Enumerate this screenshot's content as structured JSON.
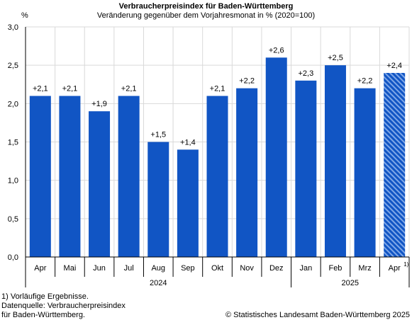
{
  "chart_data": {
    "type": "bar",
    "title": "Verbraucherpreisindex für Baden-Württemberg",
    "subtitle": "Veränderung gegenüber dem Vorjahresmonat in % (2020=100)",
    "ylabel": "%",
    "ylim": [
      0,
      3
    ],
    "yticks": [
      "0,0",
      "0,5",
      "1,0",
      "1,5",
      "2,0",
      "2,5",
      "3,0"
    ],
    "ytick_values": [
      0,
      0.5,
      1.0,
      1.5,
      2.0,
      2.5,
      3.0
    ],
    "categories": [
      "Apr",
      "Mai",
      "Jun",
      "Jul",
      "Aug",
      "Sep",
      "Okt",
      "Nov",
      "Dez",
      "Jan",
      "Feb",
      "Mrz",
      "Apr"
    ],
    "category_footnotes": [
      "",
      "",
      "",
      "",
      "",
      "",
      "",
      "",
      "",
      "",
      "",
      "",
      "1)"
    ],
    "values": [
      2.1,
      2.1,
      1.9,
      2.1,
      1.5,
      1.4,
      2.1,
      2.2,
      2.6,
      2.3,
      2.5,
      2.2,
      2.4
    ],
    "data_labels": [
      "+2,1",
      "+2,1",
      "+1,9",
      "+2,1",
      "+1,5",
      "+1,4",
      "+2,1",
      "+2,2",
      "+2,6",
      "+2,3",
      "+2,5",
      "+2,2",
      "+2,4"
    ],
    "preliminary": [
      false,
      false,
      false,
      false,
      false,
      false,
      false,
      false,
      false,
      false,
      false,
      false,
      true
    ],
    "groups": [
      {
        "label": "2024",
        "count": 9
      },
      {
        "label": "2025",
        "count": 4
      }
    ],
    "grid": true,
    "colors": {
      "bar": "#1155c4",
      "preliminary_stripe": "#7ea7e8",
      "grid": "#d9d9d9"
    }
  },
  "footnote": {
    "line1": "1) Vorläufige Ergebnisse.",
    "line2": "Datenquelle: Verbraucherpreisindex",
    "line3": "für Baden-Württemberg."
  },
  "copyright": "© Statistisches Landesamt Baden-Württemberg 2025"
}
